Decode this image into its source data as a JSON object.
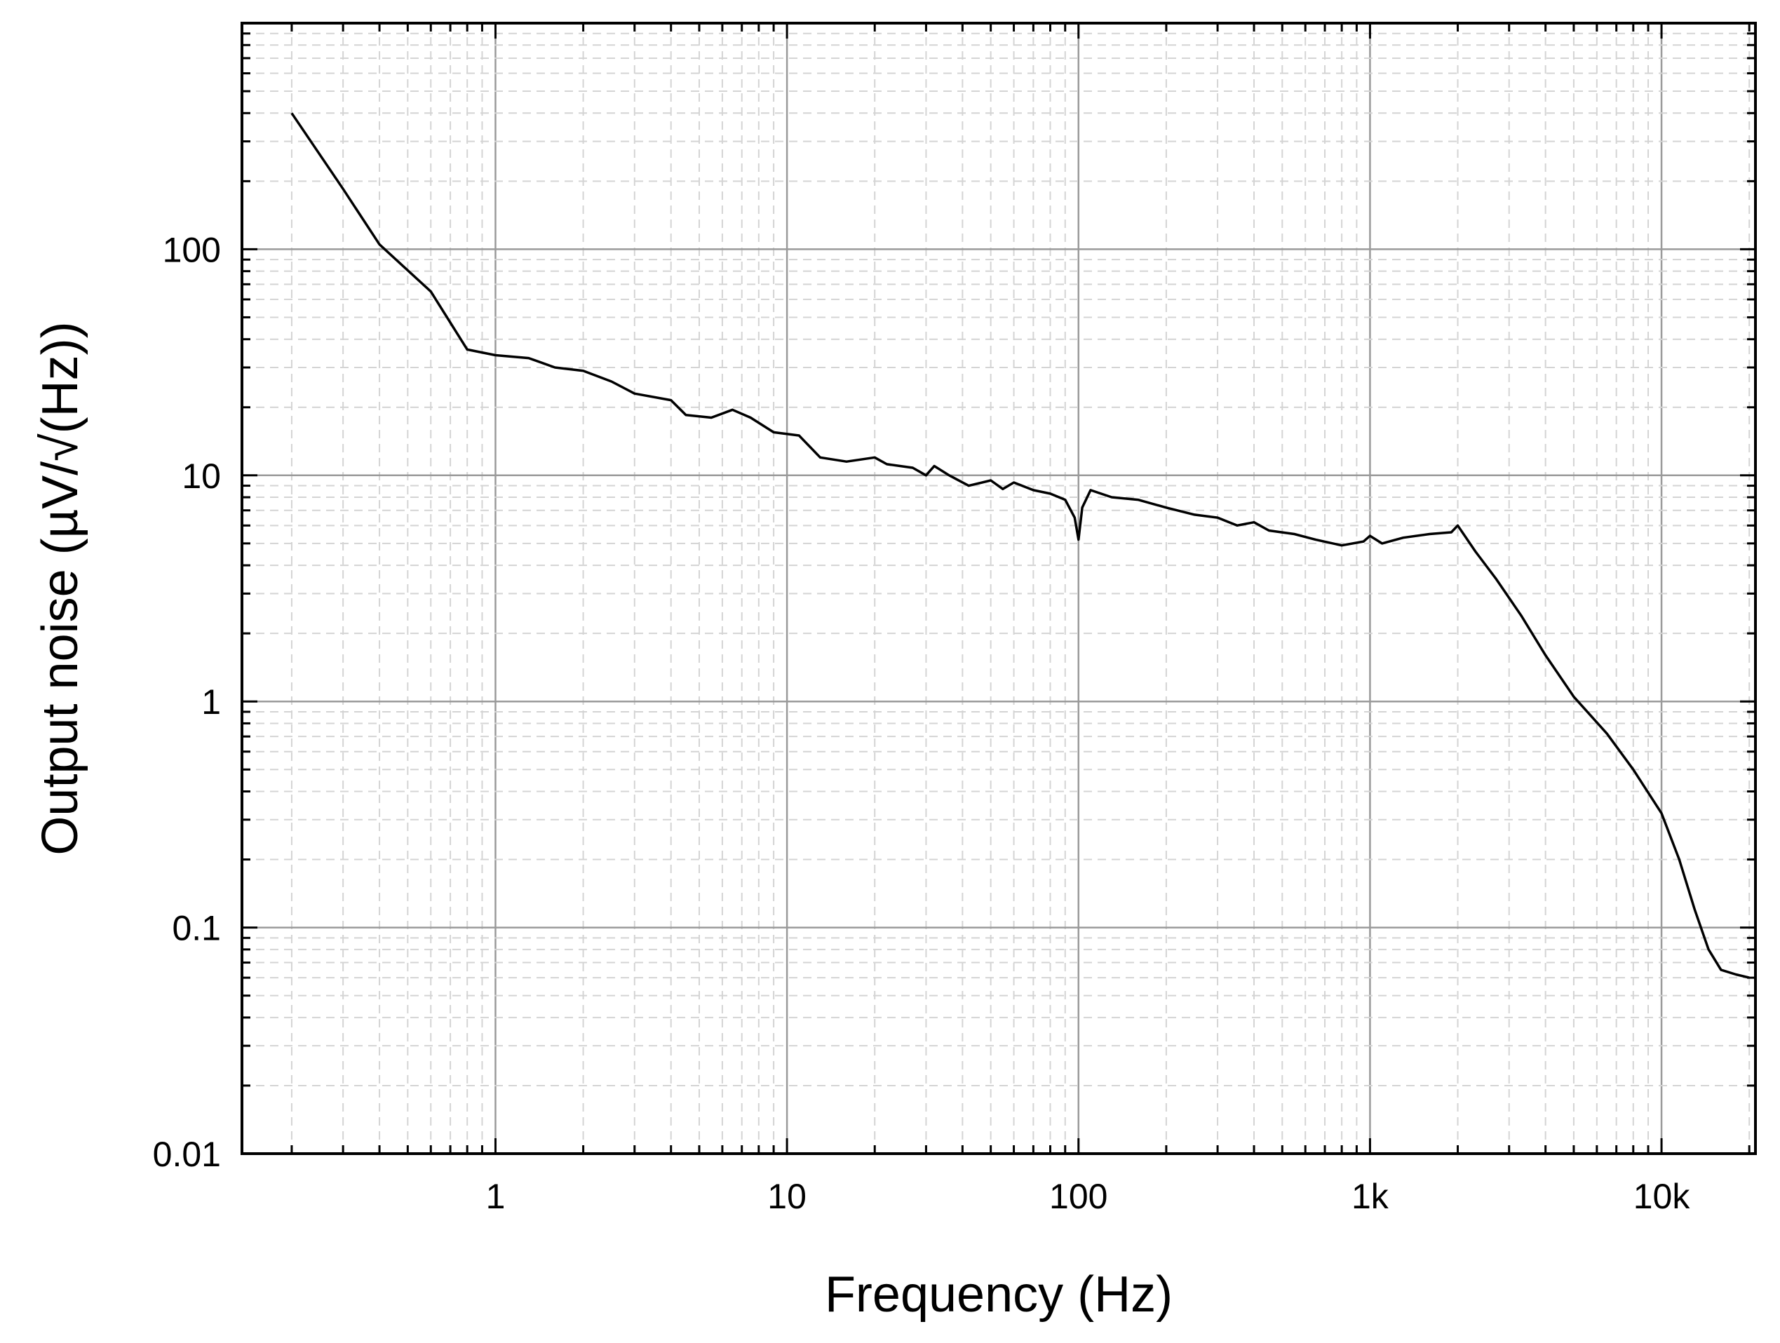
{
  "chart_data": {
    "type": "line",
    "xlabel": "Frequency (Hz)",
    "ylabel": "Output noise (µV/√(Hz))",
    "x_scale": "log",
    "y_scale": "log",
    "xlim": [
      0.135,
      21000
    ],
    "ylim": [
      0.01,
      1000
    ],
    "grid": true,
    "x_ticks": [
      {
        "value": 1,
        "label": "1"
      },
      {
        "value": 10,
        "label": "10"
      },
      {
        "value": 100,
        "label": "100"
      },
      {
        "value": 1000,
        "label": "1k"
      },
      {
        "value": 10000,
        "label": "10k"
      }
    ],
    "y_ticks": [
      {
        "value": 0.01,
        "label": "0.01"
      },
      {
        "value": 0.1,
        "label": "0.1"
      },
      {
        "value": 1,
        "label": "1"
      },
      {
        "value": 10,
        "label": "10"
      },
      {
        "value": 100,
        "label": "100"
      }
    ],
    "series": [
      {
        "color": "#000000",
        "points": [
          [
            0.2,
            400
          ],
          [
            0.3,
            185
          ],
          [
            0.4,
            105
          ],
          [
            0.6,
            65
          ],
          [
            0.8,
            36
          ],
          [
            1.0,
            34
          ],
          [
            1.3,
            33
          ],
          [
            1.6,
            30
          ],
          [
            2.0,
            29
          ],
          [
            2.5,
            26
          ],
          [
            3.0,
            23
          ],
          [
            4.0,
            21.5
          ],
          [
            4.5,
            18.5
          ],
          [
            5.5,
            18
          ],
          [
            6.5,
            19.5
          ],
          [
            7.5,
            18
          ],
          [
            9.0,
            15.5
          ],
          [
            11,
            15
          ],
          [
            13,
            12
          ],
          [
            16,
            11.5
          ],
          [
            20,
            12
          ],
          [
            22,
            11.2
          ],
          [
            27,
            10.8
          ],
          [
            30,
            10
          ],
          [
            32,
            11
          ],
          [
            36,
            10
          ],
          [
            42,
            9
          ],
          [
            50,
            9.5
          ],
          [
            55,
            8.7
          ],
          [
            60,
            9.3
          ],
          [
            70,
            8.6
          ],
          [
            80,
            8.3
          ],
          [
            90,
            7.8
          ],
          [
            97,
            6.5
          ],
          [
            100,
            5.2
          ],
          [
            103,
            7.2
          ],
          [
            110,
            8.6
          ],
          [
            130,
            8.0
          ],
          [
            160,
            7.8
          ],
          [
            200,
            7.2
          ],
          [
            250,
            6.7
          ],
          [
            300,
            6.5
          ],
          [
            350,
            6.0
          ],
          [
            400,
            6.2
          ],
          [
            450,
            5.7
          ],
          [
            550,
            5.5
          ],
          [
            650,
            5.2
          ],
          [
            800,
            4.9
          ],
          [
            950,
            5.1
          ],
          [
            1000,
            5.4
          ],
          [
            1100,
            5.0
          ],
          [
            1300,
            5.3
          ],
          [
            1600,
            5.5
          ],
          [
            1900,
            5.6
          ],
          [
            2000,
            6.0
          ],
          [
            2300,
            4.6
          ],
          [
            2700,
            3.5
          ],
          [
            3300,
            2.4
          ],
          [
            4000,
            1.6
          ],
          [
            5000,
            1.05
          ],
          [
            6500,
            0.72
          ],
          [
            8000,
            0.5
          ],
          [
            10000,
            0.32
          ],
          [
            11500,
            0.2
          ],
          [
            13000,
            0.12
          ],
          [
            14500,
            0.08
          ],
          [
            16000,
            0.065
          ],
          [
            18000,
            0.062
          ],
          [
            20000,
            0.06
          ]
        ]
      }
    ]
  }
}
